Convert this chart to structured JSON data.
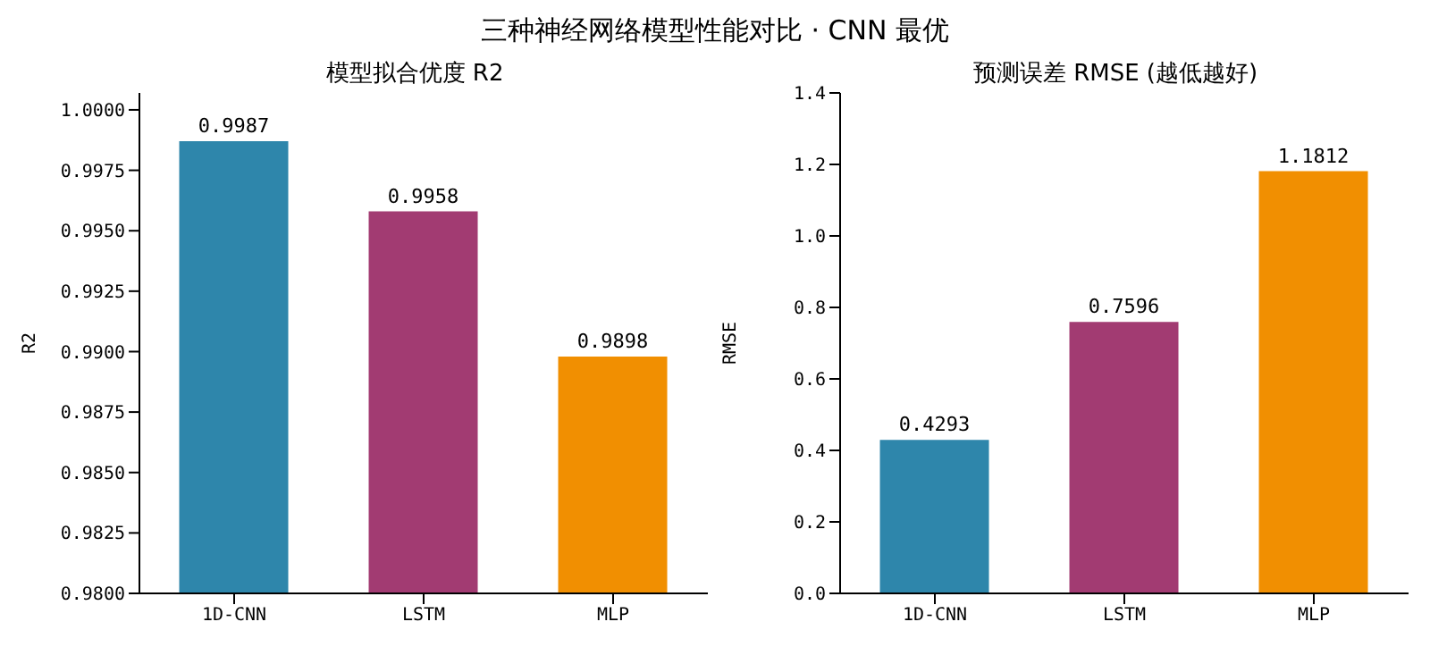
{
  "chart_data": [
    {
      "type": "bar",
      "title": "模型拟合优度 R2",
      "ylabel": "R2",
      "annotations": [
        "三种神经网络模型性能对比 · CNN 最优"
      ],
      "categories": [
        "1D-CNN",
        "LSTM",
        "MLP"
      ],
      "values": [
        0.9987,
        0.9958,
        0.9898
      ],
      "colors": [
        "#2e86ab",
        "#a23b72",
        "#f18f01"
      ],
      "ylim": [
        0.98,
        1.0007
      ],
      "yticks": [
        {
          "value": 0.98,
          "label": "0.9800"
        },
        {
          "value": 0.9825,
          "label": "0.9825"
        },
        {
          "value": 0.985,
          "label": "0.9850"
        },
        {
          "value": 0.9875,
          "label": "0.9875"
        },
        {
          "value": 0.99,
          "label": "0.9900"
        },
        {
          "value": 0.9925,
          "label": "0.9925"
        },
        {
          "value": 0.995,
          "label": "0.9950"
        },
        {
          "value": 0.9975,
          "label": "0.9975"
        },
        {
          "value": 1.0,
          "label": "1.0000"
        }
      ],
      "data_labels": true,
      "grid": false,
      "legend": false
    },
    {
      "type": "bar",
      "title": "预测误差 RMSE (越低越好)",
      "ylabel": "RMSE",
      "categories": [
        "1D-CNN",
        "LSTM",
        "MLP"
      ],
      "values": [
        0.4293,
        0.7596,
        1.1812
      ],
      "colors": [
        "#2e86ab",
        "#a23b72",
        "#f18f01"
      ],
      "ylim": [
        0,
        1.4
      ],
      "yticks": [
        {
          "value": 0,
          "label": "0.0"
        },
        {
          "value": 0.2,
          "label": "0.2"
        },
        {
          "value": 0.4,
          "label": "0.4"
        },
        {
          "value": 0.6,
          "label": "0.6"
        },
        {
          "value": 0.8,
          "label": "0.8"
        },
        {
          "value": 1.0,
          "label": "1.0"
        },
        {
          "value": 1.2,
          "label": "1.2"
        },
        {
          "value": 1.4,
          "label": "1.4"
        }
      ],
      "data_labels": true,
      "grid": false,
      "legend": false
    }
  ]
}
